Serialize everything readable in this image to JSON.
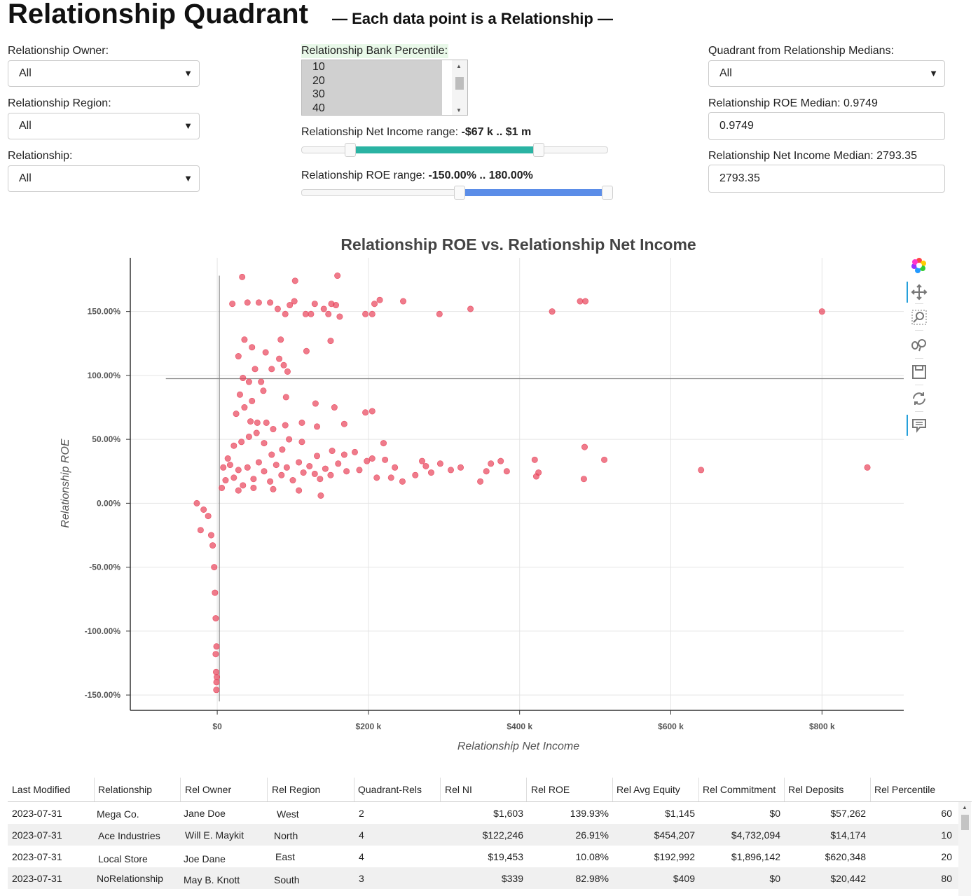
{
  "header": {
    "title": "Relationship Quadrant",
    "subtitle": "— Each data point is a Relationship —"
  },
  "filters": {
    "owner": {
      "label": "Relationship Owner:",
      "value": "All"
    },
    "region": {
      "label": "Relationship Region:",
      "value": "All"
    },
    "relationship": {
      "label": "Relationship:",
      "value": "All"
    },
    "percentile": {
      "label": "Relationship Bank Percentile:",
      "options": [
        "10",
        "20",
        "30",
        "40"
      ]
    },
    "ni_range": {
      "label": "Relationship Net Income range: ",
      "value": "-$67 k .. $1 m",
      "low": -67000,
      "high": 1000000
    },
    "roe_range": {
      "label": "Relationship ROE range: ",
      "value": "-150.00% .. 180.00%",
      "low": -1.5,
      "high": 1.8
    },
    "quadrant": {
      "label": "Quadrant from Relationship Medians:",
      "value": "All"
    },
    "roe_median": {
      "label": "Relationship ROE Median: 0.9749",
      "value": "0.9749"
    },
    "ni_median": {
      "label": "Relationship Net Income Median: 2793.35",
      "value": "2793.35"
    }
  },
  "toolbar": {
    "tools": [
      "bokeh-logo-icon",
      "pan-icon",
      "box-zoom-icon",
      "wheel-zoom-icon",
      "save-icon",
      "reset-icon",
      "hover-icon"
    ]
  },
  "colors": {
    "point": "#e8435a",
    "ni_slider": "#2ab3a3",
    "roe_slider": "#5b8de8",
    "percentile_label_bg": "#e8f8e8"
  },
  "chart_data": {
    "type": "scatter",
    "title": "Relationship ROE vs. Relationship Net Income",
    "xlabel": "Relationship Net Income",
    "ylabel": "Relationship ROE",
    "xlim": [
      -115000,
      910000
    ],
    "ylim": [
      -1.62,
      1.92
    ],
    "xticks": [
      0,
      200000,
      400000,
      600000,
      800000
    ],
    "xtick_labels": [
      "$0",
      "$200 k",
      "$400 k",
      "$600 k",
      "$800 k"
    ],
    "yticks": [
      1.5,
      1.0,
      0.5,
      0.0,
      -0.5,
      -1.0,
      -1.5
    ],
    "ytick_labels": [
      "150.00%",
      "100.00%",
      "50.00%",
      "0.00%",
      "-50.00%",
      "-100.00%",
      "-150.00%"
    ],
    "median_lines": {
      "x": 2793.35,
      "y": 0.9749
    },
    "grid": true,
    "points": [
      [
        159000,
        1.78
      ],
      [
        103000,
        1.74
      ],
      [
        33000,
        1.77
      ],
      [
        480000,
        1.58
      ],
      [
        487000,
        1.58
      ],
      [
        800000,
        1.5
      ],
      [
        443000,
        1.5
      ],
      [
        335000,
        1.52
      ],
      [
        294000,
        1.48
      ],
      [
        246000,
        1.58
      ],
      [
        215000,
        1.59
      ],
      [
        208000,
        1.56
      ],
      [
        196000,
        1.48
      ],
      [
        205000,
        1.48
      ],
      [
        157000,
        1.55
      ],
      [
        151000,
        1.56
      ],
      [
        129000,
        1.56
      ],
      [
        124000,
        1.48
      ],
      [
        117000,
        1.48
      ],
      [
        141000,
        1.52
      ],
      [
        147000,
        1.48
      ],
      [
        162000,
        1.46
      ],
      [
        102000,
        1.58
      ],
      [
        96000,
        1.55
      ],
      [
        90000,
        1.48
      ],
      [
        80000,
        1.52
      ],
      [
        70000,
        1.57
      ],
      [
        55000,
        1.57
      ],
      [
        40000,
        1.57
      ],
      [
        20000,
        1.56
      ],
      [
        150000,
        1.27
      ],
      [
        118000,
        1.19
      ],
      [
        84000,
        1.28
      ],
      [
        82000,
        1.13
      ],
      [
        64000,
        1.18
      ],
      [
        46000,
        1.22
      ],
      [
        36000,
        1.28
      ],
      [
        28000,
        1.15
      ],
      [
        88000,
        1.08
      ],
      [
        93000,
        1.03
      ],
      [
        72000,
        1.05
      ],
      [
        58000,
        0.95
      ],
      [
        50000,
        1.05
      ],
      [
        42000,
        0.95
      ],
      [
        34000,
        0.98
      ],
      [
        61000,
        0.88
      ],
      [
        91000,
        0.83
      ],
      [
        130000,
        0.78
      ],
      [
        155000,
        0.75
      ],
      [
        196000,
        0.71
      ],
      [
        205000,
        0.72
      ],
      [
        168000,
        0.62
      ],
      [
        132000,
        0.6
      ],
      [
        112000,
        0.63
      ],
      [
        90000,
        0.61
      ],
      [
        74000,
        0.58
      ],
      [
        65000,
        0.63
      ],
      [
        53000,
        0.63
      ],
      [
        44000,
        0.64
      ],
      [
        36000,
        0.75
      ],
      [
        46000,
        0.8
      ],
      [
        25000,
        0.7
      ],
      [
        30000,
        0.85
      ],
      [
        220000,
        0.47
      ],
      [
        205000,
        0.35
      ],
      [
        182000,
        0.4
      ],
      [
        168000,
        0.38
      ],
      [
        152000,
        0.41
      ],
      [
        132000,
        0.37
      ],
      [
        112000,
        0.48
      ],
      [
        95000,
        0.5
      ],
      [
        86000,
        0.42
      ],
      [
        72000,
        0.38
      ],
      [
        62000,
        0.47
      ],
      [
        52000,
        0.55
      ],
      [
        42000,
        0.52
      ],
      [
        32000,
        0.48
      ],
      [
        22000,
        0.45
      ],
      [
        486000,
        0.44
      ],
      [
        512000,
        0.34
      ],
      [
        485000,
        0.19
      ],
      [
        420000,
        0.34
      ],
      [
        425000,
        0.24
      ],
      [
        422000,
        0.21
      ],
      [
        383000,
        0.25
      ],
      [
        375000,
        0.33
      ],
      [
        362000,
        0.31
      ],
      [
        356000,
        0.25
      ],
      [
        348000,
        0.17
      ],
      [
        322000,
        0.28
      ],
      [
        309000,
        0.26
      ],
      [
        295000,
        0.31
      ],
      [
        283000,
        0.24
      ],
      [
        276000,
        0.29
      ],
      [
        271000,
        0.33
      ],
      [
        262000,
        0.22
      ],
      [
        235000,
        0.28
      ],
      [
        245000,
        0.17
      ],
      [
        230000,
        0.2
      ],
      [
        222000,
        0.34
      ],
      [
        211000,
        0.2
      ],
      [
        198000,
        0.33
      ],
      [
        188000,
        0.26
      ],
      [
        171000,
        0.25
      ],
      [
        160000,
        0.31
      ],
      [
        150000,
        0.22
      ],
      [
        143000,
        0.27
      ],
      [
        136000,
        0.19
      ],
      [
        129000,
        0.23
      ],
      [
        122000,
        0.29
      ],
      [
        114000,
        0.24
      ],
      [
        108000,
        0.32
      ],
      [
        100000,
        0.18
      ],
      [
        92000,
        0.28
      ],
      [
        85000,
        0.22
      ],
      [
        78000,
        0.3
      ],
      [
        70000,
        0.17
      ],
      [
        62000,
        0.25
      ],
      [
        55000,
        0.32
      ],
      [
        48000,
        0.19
      ],
      [
        40000,
        0.28
      ],
      [
        34000,
        0.14
      ],
      [
        28000,
        0.26
      ],
      [
        22000,
        0.2
      ],
      [
        17000,
        0.3
      ],
      [
        14000,
        0.35
      ],
      [
        11000,
        0.18
      ],
      [
        8000,
        0.28
      ],
      [
        6000,
        0.12
      ],
      [
        137000,
        0.06
      ],
      [
        108000,
        0.1
      ],
      [
        74000,
        0.11
      ],
      [
        48000,
        0.12
      ],
      [
        28000,
        0.1
      ],
      [
        640000,
        0.26
      ],
      [
        860000,
        0.28
      ],
      [
        -27000,
        0.0
      ],
      [
        -18000,
        -0.05
      ],
      [
        -12000,
        -0.1
      ],
      [
        -22000,
        -0.21
      ],
      [
        -8000,
        -0.25
      ],
      [
        -6000,
        -0.33
      ],
      [
        -4000,
        -0.5
      ],
      [
        -3000,
        -0.7
      ],
      [
        -2000,
        -0.9
      ],
      [
        -1000,
        -1.12
      ],
      [
        -2000,
        -1.18
      ],
      [
        -1500,
        -1.32
      ],
      [
        -1000,
        -1.4
      ],
      [
        -1200,
        -1.46
      ],
      [
        -500,
        -1.36
      ]
    ]
  },
  "table": {
    "headers": [
      "Last Modified",
      "Relationship",
      "Rel Owner",
      "Rel Region",
      "Quadrant-Rels",
      "Rel NI",
      "Rel ROE",
      "Rel Avg Equity",
      "Rel Commitment",
      "Rel Deposits",
      "Rel Percentile"
    ],
    "rows": [
      [
        "2023-07-31",
        "Mega Co.",
        "Jane Doe",
        "West",
        "2",
        "$1,603",
        "139.93%",
        "$1,145",
        "$0",
        "$57,262",
        "60"
      ],
      [
        "2023-07-31",
        "Ace Industries",
        "Will E. Maykit",
        "North",
        "4",
        "$122,246",
        "26.91%",
        "$454,207",
        "$4,732,094",
        "$14,174",
        "10"
      ],
      [
        "2023-07-31",
        "Local Store",
        "Joe Dane",
        "East",
        "4",
        "$19,453",
        "10.08%",
        "$192,992",
        "$1,896,142",
        "$620,348",
        "20"
      ],
      [
        "2023-07-31",
        "NoRelationship",
        "May B. Knott",
        "South",
        "3",
        "$339",
        "82.98%",
        "$409",
        "$0",
        "$20,442",
        "80"
      ]
    ]
  }
}
